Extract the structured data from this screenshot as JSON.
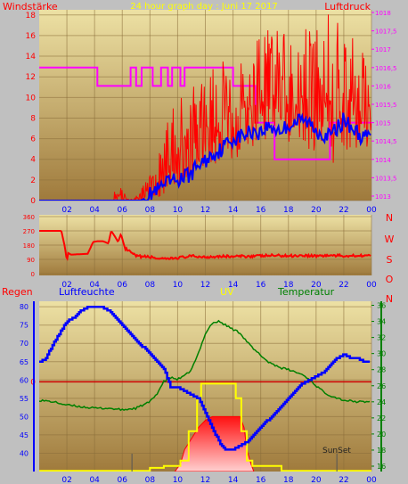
{
  "chart_data": [
    {
      "type": "line",
      "title": "24 hour graph day : Juni 17 2017",
      "left_axis_label": "Windstärke",
      "right_axis_label": "Luftdruck",
      "x_ticks": [
        "02",
        "04",
        "06",
        "08",
        "10",
        "12",
        "14",
        "16",
        "18",
        "20",
        "22",
        "00"
      ],
      "left_ticks": [
        "0",
        "2",
        "4",
        "6",
        "8",
        "10",
        "12",
        "14",
        "16",
        "18"
      ],
      "right_ticks": [
        "1013",
        "1013,5",
        "1014",
        "1014,5",
        "1015",
        "1015,5",
        "1016",
        "1016,5",
        "1017",
        "1017,5",
        "1018"
      ],
      "ylim_left": [
        0,
        18.5
      ],
      "ylim_right": [
        1013,
        1018
      ],
      "colors": {
        "gust": "#ff0000",
        "wind": "#0000ff",
        "pressure": "#ff00ff"
      },
      "pressure_steps": [
        [
          0,
          1016.5
        ],
        [
          4.2,
          1016.5
        ],
        [
          4.2,
          1016
        ],
        [
          6.6,
          1016
        ],
        [
          6.6,
          1016.5
        ],
        [
          7.0,
          1016.5
        ],
        [
          7.0,
          1016
        ],
        [
          7.4,
          1016
        ],
        [
          7.4,
          1016.5
        ],
        [
          8.2,
          1016.5
        ],
        [
          8.2,
          1016
        ],
        [
          8.8,
          1016
        ],
        [
          8.8,
          1016.5
        ],
        [
          9.3,
          1016.5
        ],
        [
          9.3,
          1016
        ],
        [
          9.6,
          1016
        ],
        [
          9.6,
          1016.5
        ],
        [
          10.2,
          1016.5
        ],
        [
          10.2,
          1016
        ],
        [
          10.5,
          1016
        ],
        [
          10.5,
          1016.5
        ],
        [
          14.0,
          1016.5
        ],
        [
          14.0,
          1016
        ],
        [
          15.6,
          1016
        ],
        [
          15.6,
          1015
        ],
        [
          17.0,
          1015
        ],
        [
          17.0,
          1014
        ],
        [
          21.0,
          1014
        ],
        [
          21.0,
          1015
        ],
        [
          24,
          1015
        ]
      ],
      "wind_points": [
        [
          0,
          0
        ],
        [
          6.5,
          0
        ],
        [
          7.3,
          0
        ],
        [
          7.8,
          0.3
        ],
        [
          8.2,
          0.8
        ],
        [
          8.6,
          1.0
        ],
        [
          9.0,
          1.4
        ],
        [
          9.5,
          1.8
        ],
        [
          10.0,
          2.0
        ],
        [
          10.5,
          2.3
        ],
        [
          11.0,
          2.6
        ],
        [
          11.5,
          3.5
        ],
        [
          12.0,
          3.8
        ],
        [
          12.5,
          4.5
        ],
        [
          13.0,
          4.8
        ],
        [
          13.5,
          5.5
        ],
        [
          14.0,
          6.0
        ],
        [
          14.5,
          6.2
        ],
        [
          15.0,
          6.5
        ],
        [
          15.5,
          6.8
        ],
        [
          16.0,
          6.6
        ],
        [
          16.5,
          7.2
        ],
        [
          17.0,
          7.0
        ],
        [
          17.5,
          6.8
        ],
        [
          18.0,
          7.3
        ],
        [
          18.5,
          7.6
        ],
        [
          19.0,
          7.8
        ],
        [
          19.5,
          7.5
        ],
        [
          20.0,
          6.8
        ],
        [
          20.5,
          6.5
        ],
        [
          21.0,
          6.2
        ],
        [
          21.5,
          7.0
        ],
        [
          22.0,
          7.8
        ],
        [
          22.5,
          7.2
        ],
        [
          23.0,
          6.5
        ],
        [
          23.5,
          6.0
        ],
        [
          24,
          6.5
        ]
      ],
      "gust_envelope": [
        [
          5.3,
          0,
          0
        ],
        [
          5.5,
          0,
          1.8
        ],
        [
          6.8,
          0,
          0
        ],
        [
          7.6,
          0,
          2.0
        ],
        [
          8.2,
          0,
          3.0
        ],
        [
          8.8,
          0.2,
          5.0
        ],
        [
          9.5,
          0.8,
          9.5
        ],
        [
          10.0,
          1.0,
          10.0
        ],
        [
          11.0,
          1.6,
          11.0
        ],
        [
          12.0,
          3.0,
          12.0
        ],
        [
          13.0,
          3.6,
          13.5
        ],
        [
          14.0,
          4.0,
          13.8
        ],
        [
          14.5,
          4.0,
          14.5
        ],
        [
          15.0,
          5.0,
          15.0
        ],
        [
          16.0,
          5.6,
          16.5
        ],
        [
          17.0,
          5.6,
          16.8
        ],
        [
          18.0,
          5.5,
          17.0
        ],
        [
          19.0,
          5.0,
          17.6
        ],
        [
          20.0,
          4.5,
          17.0
        ],
        [
          21.0,
          3.0,
          18.5
        ],
        [
          22.0,
          4.5,
          16.5
        ],
        [
          23.0,
          5.0,
          15.5
        ],
        [
          24,
          5.0,
          15.5
        ]
      ]
    },
    {
      "type": "line",
      "right_labels": [
        "N",
        "W",
        "S",
        "O",
        "N"
      ],
      "x_ticks": [
        "02",
        "04",
        "06",
        "08",
        "10",
        "12",
        "14",
        "16",
        "18",
        "20",
        "22",
        "00"
      ],
      "left_ticks": [
        "0",
        "90",
        "180",
        "270",
        "360"
      ],
      "ylim": [
        0,
        360
      ],
      "color": "#ff0000",
      "points": [
        [
          0,
          270
        ],
        [
          1.6,
          270
        ],
        [
          1.7,
          230
        ],
        [
          1.85,
          170
        ],
        [
          2.0,
          80
        ],
        [
          2.1,
          130
        ],
        [
          2.3,
          120
        ],
        [
          3.5,
          125
        ],
        [
          3.9,
          200
        ],
        [
          4.2,
          205
        ],
        [
          4.6,
          205
        ],
        [
          5.0,
          190
        ],
        [
          5.2,
          270
        ],
        [
          5.5,
          230
        ],
        [
          5.7,
          200
        ],
        [
          5.9,
          250
        ],
        [
          6.2,
          160
        ],
        [
          6.5,
          140
        ],
        [
          7.0,
          110
        ],
        [
          8.0,
          105
        ],
        [
          9.0,
          90
        ],
        [
          10.0,
          100
        ],
        [
          11.0,
          110
        ],
        [
          12.0,
          105
        ],
        [
          13.0,
          110
        ],
        [
          14.0,
          108
        ],
        [
          15.0,
          110
        ],
        [
          16.0,
          112
        ],
        [
          17.0,
          115
        ],
        [
          18.0,
          112
        ],
        [
          19.0,
          115
        ],
        [
          20.0,
          112
        ],
        [
          21.0,
          115
        ],
        [
          22.0,
          112
        ],
        [
          23.0,
          115
        ],
        [
          24,
          115
        ]
      ]
    },
    {
      "type": "line",
      "labels": {
        "rain": "Regen",
        "humidity": "Luftfeuchte",
        "uv": "UV",
        "temperature": "Temperatur",
        "sunset": "SunSet"
      },
      "x_ticks": [
        "02",
        "04",
        "06",
        "08",
        "10",
        "12",
        "14",
        "16",
        "18",
        "20",
        "22",
        "00"
      ],
      "humidity_ticks": [
        "40",
        "45",
        "50",
        "55",
        "60",
        "65",
        "70",
        "75",
        "80"
      ],
      "temperature_ticks": [
        "16",
        "18",
        "20",
        "22",
        "24",
        "26",
        "28",
        "30",
        "32",
        "34",
        "36"
      ],
      "rain_tick": "0",
      "ylim_humidity": [
        35,
        81.5
      ],
      "ylim_temperature": [
        16,
        36.5
      ],
      "colors": {
        "humidity": "#0000ff",
        "temperature": "#008000",
        "uv": "#ffff00",
        "solar": "#ff0000",
        "rain": "#cc0000"
      },
      "rain_zero_value": 59.5,
      "humidity": [
        [
          0,
          65
        ],
        [
          0.5,
          66
        ],
        [
          1.0,
          70
        ],
        [
          1.5,
          73
        ],
        [
          2.0,
          76
        ],
        [
          2.5,
          77
        ],
        [
          3.0,
          79
        ],
        [
          3.5,
          80
        ],
        [
          4.0,
          80
        ],
        [
          4.5,
          80
        ],
        [
          5.0,
          79
        ],
        [
          5.5,
          77
        ],
        [
          6.0,
          75
        ],
        [
          6.5,
          73
        ],
        [
          7.0,
          71
        ],
        [
          7.5,
          69
        ],
        [
          8.0,
          67
        ],
        [
          8.5,
          65
        ],
        [
          9.0,
          63
        ],
        [
          9.5,
          58
        ],
        [
          10.0,
          58
        ],
        [
          10.5,
          57
        ],
        [
          11.0,
          56
        ],
        [
          11.5,
          55
        ],
        [
          12.0,
          51
        ],
        [
          12.5,
          47
        ],
        [
          13.0,
          43
        ],
        [
          13.5,
          41
        ],
        [
          14.0,
          41
        ],
        [
          14.5,
          42
        ],
        [
          15.0,
          43
        ],
        [
          15.5,
          45
        ],
        [
          16.0,
          47
        ],
        [
          16.5,
          49
        ],
        [
          17.0,
          51
        ],
        [
          17.5,
          53
        ],
        [
          18.0,
          55
        ],
        [
          18.5,
          57
        ],
        [
          19.0,
          59
        ],
        [
          19.5,
          60
        ],
        [
          20.0,
          61
        ],
        [
          20.5,
          62
        ],
        [
          21.0,
          64
        ],
        [
          21.5,
          66
        ],
        [
          22.0,
          67
        ],
        [
          22.5,
          66
        ],
        [
          23.0,
          66
        ],
        [
          23.5,
          65
        ],
        [
          24,
          65
        ]
      ],
      "temperature": [
        [
          0,
          24.2
        ],
        [
          1.0,
          24.0
        ],
        [
          2.0,
          23.6
        ],
        [
          3.0,
          23.4
        ],
        [
          4.0,
          23.2
        ],
        [
          5.0,
          23.2
        ],
        [
          6.0,
          23.0
        ],
        [
          7.0,
          23.2
        ],
        [
          7.5,
          23.6
        ],
        [
          8.0,
          24.0
        ],
        [
          8.5,
          25.0
        ],
        [
          9.0,
          26.5
        ],
        [
          9.5,
          27.0
        ],
        [
          10.0,
          26.8
        ],
        [
          10.5,
          27.2
        ],
        [
          11.0,
          28.0
        ],
        [
          11.5,
          30.0
        ],
        [
          12.0,
          32.5
        ],
        [
          12.5,
          33.8
        ],
        [
          13.0,
          34.0
        ],
        [
          13.5,
          33.5
        ],
        [
          14.0,
          33.0
        ],
        [
          14.5,
          32.6
        ],
        [
          15.0,
          31.5
        ],
        [
          15.5,
          30.5
        ],
        [
          16.0,
          29.8
        ],
        [
          16.5,
          29.0
        ],
        [
          17.0,
          28.6
        ],
        [
          17.5,
          28.2
        ],
        [
          18.0,
          28.0
        ],
        [
          18.5,
          27.7
        ],
        [
          19.0,
          27.4
        ],
        [
          19.5,
          26.8
        ],
        [
          20.0,
          26.0
        ],
        [
          20.5,
          25.3
        ],
        [
          21.0,
          24.8
        ],
        [
          21.5,
          24.5
        ],
        [
          22.0,
          24.2
        ],
        [
          23.0,
          24.0
        ],
        [
          24,
          24.0
        ]
      ],
      "uv": [
        [
          0,
          35.2
        ],
        [
          8.0,
          35.2
        ],
        [
          8.0,
          36.0
        ],
        [
          9.0,
          36.0
        ],
        [
          9.0,
          36.5
        ],
        [
          10.2,
          36.5
        ],
        [
          10.2,
          38.0
        ],
        [
          10.8,
          38.0
        ],
        [
          10.8,
          46.0
        ],
        [
          11.4,
          46.0
        ],
        [
          11.4,
          55.0
        ],
        [
          11.7,
          55.0
        ],
        [
          11.7,
          59.0
        ],
        [
          14.2,
          59.0
        ],
        [
          14.2,
          55.0
        ],
        [
          14.6,
          55.0
        ],
        [
          14.6,
          46.0
        ],
        [
          15.0,
          46.0
        ],
        [
          15.0,
          38.0
        ],
        [
          15.4,
          38.0
        ],
        [
          15.4,
          36.5
        ],
        [
          17.5,
          36.5
        ],
        [
          17.5,
          35.2
        ],
        [
          24,
          35.2
        ]
      ],
      "solar": [
        [
          9.8,
          35
        ],
        [
          10.2,
          37
        ],
        [
          10.5,
          41
        ],
        [
          11.0,
          44
        ],
        [
          11.5,
          47
        ],
        [
          12.0,
          49
        ],
        [
          12.5,
          50
        ],
        [
          13.0,
          50
        ],
        [
          13.5,
          50
        ],
        [
          14.0,
          50
        ],
        [
          14.5,
          50
        ],
        [
          14.8,
          47
        ],
        [
          15.0,
          41
        ],
        [
          15.3,
          37
        ],
        [
          15.5,
          35
        ]
      ],
      "rain_markers": [
        6.7,
        21.5
      ]
    }
  ]
}
